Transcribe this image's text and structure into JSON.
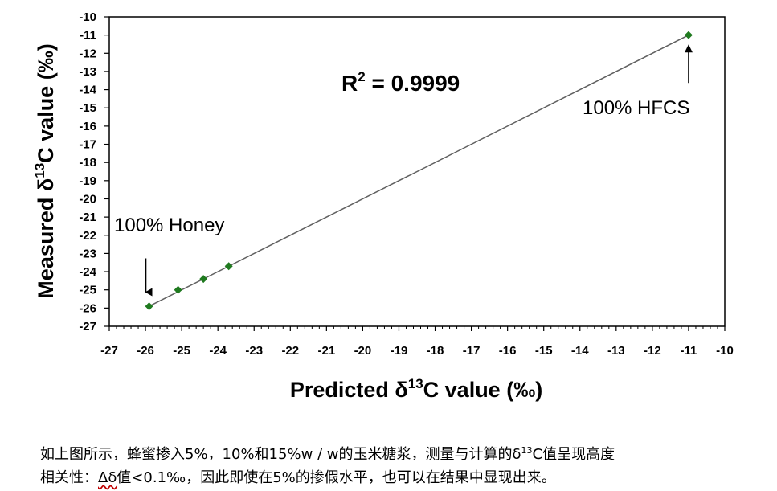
{
  "chart_data": {
    "type": "scatter",
    "xlabel": {
      "prefix": "Predicted δ",
      "sup": "13",
      "suffix": "C value (‰)"
    },
    "ylabel": {
      "prefix": "Measured δ",
      "sup": "13",
      "suffix": "C value (‰)"
    },
    "xlim": [
      -27,
      -10
    ],
    "ylim": [
      -27,
      -10
    ],
    "xticks": [
      -27,
      -26,
      -25,
      -24,
      -23,
      -22,
      -21,
      -20,
      -19,
      -18,
      -17,
      -16,
      -15,
      -14,
      -13,
      -12,
      -11,
      -10
    ],
    "yticks": [
      -10,
      -11,
      -12,
      -13,
      -14,
      -15,
      -16,
      -17,
      -18,
      -19,
      -20,
      -21,
      -22,
      -23,
      -24,
      -25,
      -26,
      -27
    ],
    "grid": false,
    "point_color": "#1f7a1f",
    "points": [
      {
        "x": -25.9,
        "y": -25.9
      },
      {
        "x": -25.1,
        "y": -25.0
      },
      {
        "x": -24.4,
        "y": -24.4
      },
      {
        "x": -23.7,
        "y": -23.7
      },
      {
        "x": -11.0,
        "y": -11.0
      }
    ],
    "fit_line": {
      "x": [
        -25.9,
        -11.0
      ],
      "y": [
        -25.9,
        -11.0
      ]
    },
    "r2_label": {
      "prefix": "R",
      "sup": "2",
      "suffix": " = 0.9999"
    },
    "annotations": [
      {
        "text": "100% Honey",
        "arrow_to": {
          "x": -25.9,
          "y": -25.3
        }
      },
      {
        "text": "100% HFCS",
        "arrow_to": {
          "x": -11.0,
          "y": -11.6
        }
      }
    ]
  },
  "caption": {
    "line1": {
      "prefix": "如上图所示，蜂蜜掺入5%，10%和15%w / w的玉米糖浆，测量与计算的δ",
      "sup": "13",
      "suffix": "C值呈现高度"
    },
    "line2": {
      "prefix": "相关性：",
      "delta": "Δδ",
      "suffix": "值<0.1‰，因此即使在5%的掺假水平，也可以在结果中显现出来。"
    }
  }
}
